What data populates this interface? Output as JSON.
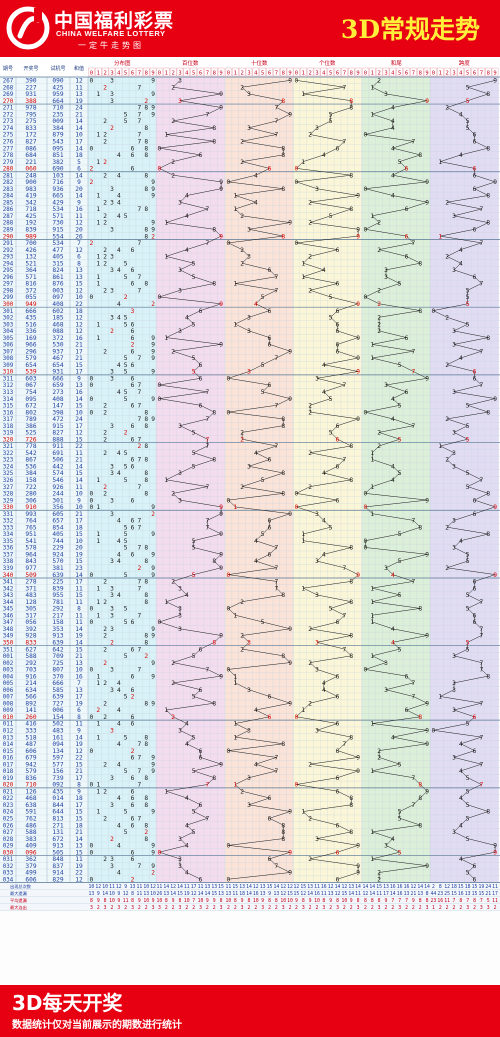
{
  "header": {
    "logo_cn": "中国福利彩票",
    "logo_en": "CHINA WELFARE LOTTERY",
    "logo_slogan": "一定牛走势图",
    "title": "3D常规走势"
  },
  "footer": {
    "title": "3D每天开奖",
    "subtitle": "数据统计仅对当前展示的期数进行统计"
  },
  "colors": {
    "brand_red": "#e60012",
    "title_yellow": "#ffef3a",
    "grid_line": "#c6d4e0",
    "panel_distribution": "#d9f2f7",
    "panel_hundreds": "#f4dcef",
    "panel_tens": "#fbe3d8",
    "panel_units": "#fbf6d7",
    "panel_sum_tail": "#dcefd8",
    "panel_span": "#e2dcf3"
  },
  "chart_data": {
    "type": "table",
    "column_headers": {
      "issue": "期号",
      "draw": "开奖号",
      "test": "试机号",
      "sum": "和值",
      "distribution": "分布图",
      "hundreds": "百位数",
      "tens": "十位数",
      "units": "个位数",
      "sum_tail": "和尾",
      "span": "跨度"
    },
    "digit_headers": [
      "0",
      "1",
      "2",
      "3",
      "4",
      "5",
      "6",
      "7",
      "8",
      "9"
    ],
    "draws": [
      {
        "issue": "267",
        "draw": "390",
        "test": "090",
        "sum": "12"
      },
      {
        "issue": "268",
        "draw": "227",
        "test": "425",
        "sum": "11"
      },
      {
        "issue": "269",
        "draw": "931",
        "test": "959",
        "sum": "13"
      },
      {
        "issue": "270",
        "draw": "388",
        "test": "664",
        "sum": "19"
      },
      {
        "issue": "271",
        "draw": "978",
        "test": "710",
        "sum": "24"
      },
      {
        "issue": "272",
        "draw": "795",
        "test": "235",
        "sum": "21"
      },
      {
        "issue": "273",
        "draw": "275",
        "test": "009",
        "sum": "14"
      },
      {
        "issue": "274",
        "draw": "833",
        "test": "384",
        "sum": "14"
      },
      {
        "issue": "275",
        "draw": "172",
        "test": "879",
        "sum": "10"
      },
      {
        "issue": "276",
        "draw": "827",
        "test": "543",
        "sum": "17"
      },
      {
        "issue": "277",
        "draw": "086",
        "test": "095",
        "sum": "14"
      },
      {
        "issue": "278",
        "draw": "684",
        "test": "851",
        "sum": "18"
      },
      {
        "issue": "279",
        "draw": "221",
        "test": "382",
        "sum": "5"
      },
      {
        "issue": "280",
        "draw": "060",
        "test": "690",
        "sum": "6"
      },
      {
        "issue": "281",
        "draw": "248",
        "test": "103",
        "sum": "14"
      },
      {
        "issue": "282",
        "draw": "900",
        "test": "716",
        "sum": "9"
      },
      {
        "issue": "283",
        "draw": "983",
        "test": "936",
        "sum": "20"
      },
      {
        "issue": "284",
        "draw": "419",
        "test": "665",
        "sum": "14"
      },
      {
        "issue": "285",
        "draw": "342",
        "test": "429",
        "sum": "9"
      },
      {
        "issue": "286",
        "draw": "718",
        "test": "534",
        "sum": "16"
      },
      {
        "issue": "287",
        "draw": "425",
        "test": "571",
        "sum": "11"
      },
      {
        "issue": "288",
        "draw": "192",
        "test": "730",
        "sum": "12"
      },
      {
        "issue": "289",
        "draw": "839",
        "test": "915",
        "sum": "20"
      },
      {
        "issue": "290",
        "draw": "989",
        "test": "554",
        "sum": "26"
      },
      {
        "issue": "291",
        "draw": "700",
        "test": "534",
        "sum": "7"
      },
      {
        "issue": "292",
        "draw": "426",
        "test": "477",
        "sum": "12"
      },
      {
        "issue": "293",
        "draw": "132",
        "test": "405",
        "sum": "6"
      },
      {
        "issue": "294",
        "draw": "521",
        "test": "315",
        "sum": "8"
      },
      {
        "issue": "295",
        "draw": "364",
        "test": "824",
        "sum": "13"
      },
      {
        "issue": "296",
        "draw": "571",
        "test": "861",
        "sum": "13"
      },
      {
        "issue": "297",
        "draw": "816",
        "test": "876",
        "sum": "15"
      },
      {
        "issue": "298",
        "draw": "372",
        "test": "003",
        "sum": "12"
      },
      {
        "issue": "299",
        "draw": "055",
        "test": "097",
        "sum": "10"
      },
      {
        "issue": "300",
        "draw": "949",
        "test": "408",
        "sum": "22"
      },
      {
        "issue": "301",
        "draw": "666",
        "test": "602",
        "sum": "18"
      },
      {
        "issue": "302",
        "draw": "435",
        "test": "185",
        "sum": "12"
      },
      {
        "issue": "303",
        "draw": "516",
        "test": "468",
        "sum": "12"
      },
      {
        "issue": "304",
        "draw": "336",
        "test": "088",
        "sum": "12"
      },
      {
        "issue": "305",
        "draw": "169",
        "test": "372",
        "sum": "16"
      },
      {
        "issue": "306",
        "draw": "966",
        "test": "530",
        "sum": "21"
      },
      {
        "issue": "307",
        "draw": "296",
        "test": "937",
        "sum": "17"
      },
      {
        "issue": "308",
        "draw": "579",
        "test": "467",
        "sum": "21"
      },
      {
        "issue": "309",
        "draw": "654",
        "test": "654",
        "sum": "15"
      },
      {
        "issue": "310",
        "draw": "539",
        "test": "931",
        "sum": "17"
      },
      {
        "issue": "311",
        "draw": "603",
        "test": "666",
        "sum": "9"
      },
      {
        "issue": "312",
        "draw": "067",
        "test": "659",
        "sum": "13"
      },
      {
        "issue": "313",
        "draw": "754",
        "test": "273",
        "sum": "16"
      },
      {
        "issue": "314",
        "draw": "095",
        "test": "408",
        "sum": "14"
      },
      {
        "issue": "315",
        "draw": "672",
        "test": "147",
        "sum": "15"
      },
      {
        "issue": "316",
        "draw": "802",
        "test": "398",
        "sum": "10"
      },
      {
        "issue": "317",
        "draw": "789",
        "test": "472",
        "sum": "24"
      },
      {
        "issue": "318",
        "draw": "386",
        "test": "915",
        "sum": "17"
      },
      {
        "issue": "319",
        "draw": "525",
        "test": "827",
        "sum": "12"
      },
      {
        "issue": "320",
        "draw": "726",
        "test": "888",
        "sum": "15"
      },
      {
        "issue": "321",
        "draw": "778",
        "test": "911",
        "sum": "22"
      },
      {
        "issue": "322",
        "draw": "542",
        "test": "691",
        "sum": "11"
      },
      {
        "issue": "323",
        "draw": "867",
        "test": "506",
        "sum": "21"
      },
      {
        "issue": "324",
        "draw": "536",
        "test": "442",
        "sum": "14"
      },
      {
        "issue": "325",
        "draw": "384",
        "test": "574",
        "sum": "15"
      },
      {
        "issue": "326",
        "draw": "158",
        "test": "546",
        "sum": "14"
      },
      {
        "issue": "327",
        "draw": "722",
        "test": "926",
        "sum": "11"
      },
      {
        "issue": "328",
        "draw": "280",
        "test": "244",
        "sum": "10"
      },
      {
        "issue": "329",
        "draw": "306",
        "test": "301",
        "sum": "9"
      },
      {
        "issue": "330",
        "draw": "910",
        "test": "356",
        "sum": "10"
      },
      {
        "issue": "331",
        "draw": "993",
        "test": "605",
        "sum": "21"
      },
      {
        "issue": "332",
        "draw": "764",
        "test": "657",
        "sum": "17"
      },
      {
        "issue": "333",
        "draw": "765",
        "test": "854",
        "sum": "18"
      },
      {
        "issue": "334",
        "draw": "951",
        "test": "405",
        "sum": "15"
      },
      {
        "issue": "335",
        "draw": "541",
        "test": "744",
        "sum": "10"
      },
      {
        "issue": "336",
        "draw": "578",
        "test": "229",
        "sum": "20"
      },
      {
        "issue": "337",
        "draw": "964",
        "test": "924",
        "sum": "19"
      },
      {
        "issue": "338",
        "draw": "843",
        "test": "570",
        "sum": "15"
      },
      {
        "issue": "339",
        "draw": "977",
        "test": "381",
        "sum": "23"
      },
      {
        "issue": "340",
        "draw": "509",
        "test": "639",
        "sum": "14"
      },
      {
        "issue": "341",
        "draw": "278",
        "test": "225",
        "sum": "17"
      },
      {
        "issue": "342",
        "draw": "371",
        "test": "839",
        "sum": "11"
      },
      {
        "issue": "343",
        "draw": "483",
        "test": "955",
        "sum": "15"
      },
      {
        "issue": "344",
        "draw": "128",
        "test": "781",
        "sum": "11"
      },
      {
        "issue": "345",
        "draw": "305",
        "test": "292",
        "sum": "8"
      },
      {
        "issue": "346",
        "draw": "317",
        "test": "217",
        "sum": "11"
      },
      {
        "issue": "347",
        "draw": "056",
        "test": "158",
        "sum": "11"
      },
      {
        "issue": "348",
        "draw": "392",
        "test": "353",
        "sum": "14"
      },
      {
        "issue": "349",
        "draw": "928",
        "test": "913",
        "sum": "19"
      },
      {
        "issue": "350",
        "draw": "833",
        "test": "639",
        "sum": "14"
      },
      {
        "issue": "351",
        "draw": "627",
        "test": "642",
        "sum": "15"
      },
      {
        "issue": "001",
        "draw": "588",
        "test": "709",
        "sum": "21"
      },
      {
        "issue": "002",
        "draw": "292",
        "test": "725",
        "sum": "13"
      },
      {
        "issue": "003",
        "draw": "703",
        "test": "807",
        "sum": "10"
      },
      {
        "issue": "004",
        "draw": "916",
        "test": "370",
        "sum": "16"
      },
      {
        "issue": "005",
        "draw": "214",
        "test": "666",
        "sum": "7"
      },
      {
        "issue": "006",
        "draw": "634",
        "test": "585",
        "sum": "13"
      },
      {
        "issue": "007",
        "draw": "566",
        "test": "639",
        "sum": "17"
      },
      {
        "issue": "008",
        "draw": "892",
        "test": "727",
        "sum": "19"
      },
      {
        "issue": "009",
        "draw": "141",
        "test": "006",
        "sum": "6"
      },
      {
        "issue": "010",
        "draw": "260",
        "test": "154",
        "sum": "8"
      },
      {
        "issue": "011",
        "draw": "416",
        "test": "502",
        "sum": "11"
      },
      {
        "issue": "012",
        "draw": "333",
        "test": "483",
        "sum": "9"
      },
      {
        "issue": "013",
        "draw": "518",
        "test": "161",
        "sum": "14"
      },
      {
        "issue": "014",
        "draw": "487",
        "test": "094",
        "sum": "19"
      },
      {
        "issue": "015",
        "draw": "606",
        "test": "134",
        "sum": "12"
      },
      {
        "issue": "016",
        "draw": "679",
        "test": "597",
        "sum": "22"
      },
      {
        "issue": "017",
        "draw": "942",
        "test": "577",
        "sum": "15"
      },
      {
        "issue": "018",
        "draw": "579",
        "test": "156",
        "sum": "21"
      },
      {
        "issue": "019",
        "draw": "836",
        "test": "739",
        "sum": "17"
      },
      {
        "issue": "020",
        "draw": "710",
        "test": "092",
        "sum": "8"
      },
      {
        "issue": "021",
        "draw": "126",
        "test": "435",
        "sum": "9"
      },
      {
        "issue": "022",
        "draw": "468",
        "test": "014",
        "sum": "18"
      },
      {
        "issue": "023",
        "draw": "638",
        "test": "844",
        "sum": "17"
      },
      {
        "issue": "024",
        "draw": "591",
        "test": "644",
        "sum": "15"
      },
      {
        "issue": "025",
        "draw": "762",
        "test": "813",
        "sum": "15"
      },
      {
        "issue": "026",
        "draw": "486",
        "test": "271",
        "sum": "18"
      },
      {
        "issue": "027",
        "draw": "588",
        "test": "131",
        "sum": "21"
      },
      {
        "issue": "028",
        "draw": "383",
        "test": "672",
        "sum": "14"
      },
      {
        "issue": "029",
        "draw": "409",
        "test": "913",
        "sum": "13"
      },
      {
        "issue": "030",
        "draw": "096",
        "test": "505",
        "sum": "15"
      },
      {
        "issue": "031",
        "draw": "362",
        "test": "848",
        "sum": "11"
      },
      {
        "issue": "032",
        "draw": "379",
        "test": "837",
        "sum": "19"
      },
      {
        "issue": "033",
        "draw": "499",
        "test": "914",
        "sum": "22"
      },
      {
        "issue": "034",
        "draw": "606",
        "test": "829",
        "sum": "12"
      }
    ],
    "stats": {
      "labels": [
        "出现总次数",
        "最大遗漏",
        "平均遗漏",
        "最大连出"
      ],
      "distribution": [
        [
          "10",
          "12",
          "10",
          "11",
          "12",
          "9",
          "13",
          "11",
          "10",
          "12"
        ],
        [
          "13",
          "9",
          "14",
          "10",
          "9",
          "12",
          "8",
          "11",
          "13",
          "10"
        ],
        [
          "8",
          "9",
          "8",
          "10",
          "9",
          "11",
          "8",
          "9",
          "10",
          "9"
        ],
        [
          "3",
          "2",
          "3",
          "2",
          "3",
          "2",
          "3",
          "2",
          "2",
          "3"
        ]
      ],
      "hundreds": [
        [
          "11",
          "14",
          "12",
          "14",
          "11",
          "17",
          "11",
          "13",
          "13",
          "15"
        ],
        [
          "26",
          "13",
          "14",
          "15",
          "19",
          "12",
          "14",
          "14",
          "15",
          "13"
        ],
        [
          "10",
          "8",
          "9",
          "8",
          "10",
          "7",
          "10",
          "9",
          "9",
          "8"
        ],
        [
          "3",
          "2",
          "2",
          "3",
          "2",
          "2",
          "3",
          "2",
          "2",
          "3"
        ]
      ],
      "tens": [
        [
          "11",
          "15",
          "13",
          "14",
          "12",
          "13",
          "15",
          "14",
          "12",
          "12"
        ],
        [
          "13",
          "11",
          "18",
          "14",
          "16",
          "13",
          "9",
          "13",
          "12",
          "15"
        ],
        [
          "10",
          "8",
          "9",
          "8",
          "10",
          "9",
          "8",
          "8",
          "10",
          "10"
        ],
        [
          "2",
          "2",
          "3",
          "2",
          "2",
          "3",
          "2",
          "2",
          "3",
          "2"
        ]
      ],
      "units": [
        [
          "12",
          "15",
          "13",
          "11",
          "16",
          "12",
          "14",
          "12",
          "13",
          "14"
        ],
        [
          "15",
          "12",
          "14",
          "16",
          "11",
          "13",
          "12",
          "15",
          "14",
          "11"
        ],
        [
          "9",
          "8",
          "9",
          "10",
          "8",
          "9",
          "8",
          "10",
          "9",
          "8"
        ],
        [
          "2",
          "3",
          "2",
          "2",
          "3",
          "2",
          "3",
          "2",
          "2",
          "3"
        ]
      ],
      "sum_tail": [
        [
          "14",
          "14",
          "15",
          "13",
          "16",
          "16",
          "16",
          "12",
          "14",
          "14"
        ],
        [
          "12",
          "14",
          "11",
          "17",
          "14",
          "16",
          "13",
          "21",
          "13",
          "8"
        ],
        [
          "8",
          "8",
          "8",
          "9",
          "7",
          "7",
          "7",
          "9",
          "8",
          "8"
        ],
        [
          "2",
          "2",
          "3",
          "2",
          "2",
          "3",
          "2",
          "2",
          "2",
          "3"
        ]
      ],
      "span": [
        [
          "2",
          "8",
          "12",
          "18",
          "15",
          "18",
          "15",
          "19",
          "24",
          "11"
        ],
        [
          "44",
          "23",
          "25",
          "15",
          "16",
          "13",
          "15",
          "15",
          "21",
          "17"
        ],
        [
          "23",
          "16",
          "11",
          "7",
          "8",
          "7",
          "8",
          "7",
          "5",
          "11"
        ],
        [
          "1",
          "2",
          "2",
          "2",
          "2",
          "3",
          "2",
          "3",
          "3",
          "2"
        ]
      ]
    }
  }
}
